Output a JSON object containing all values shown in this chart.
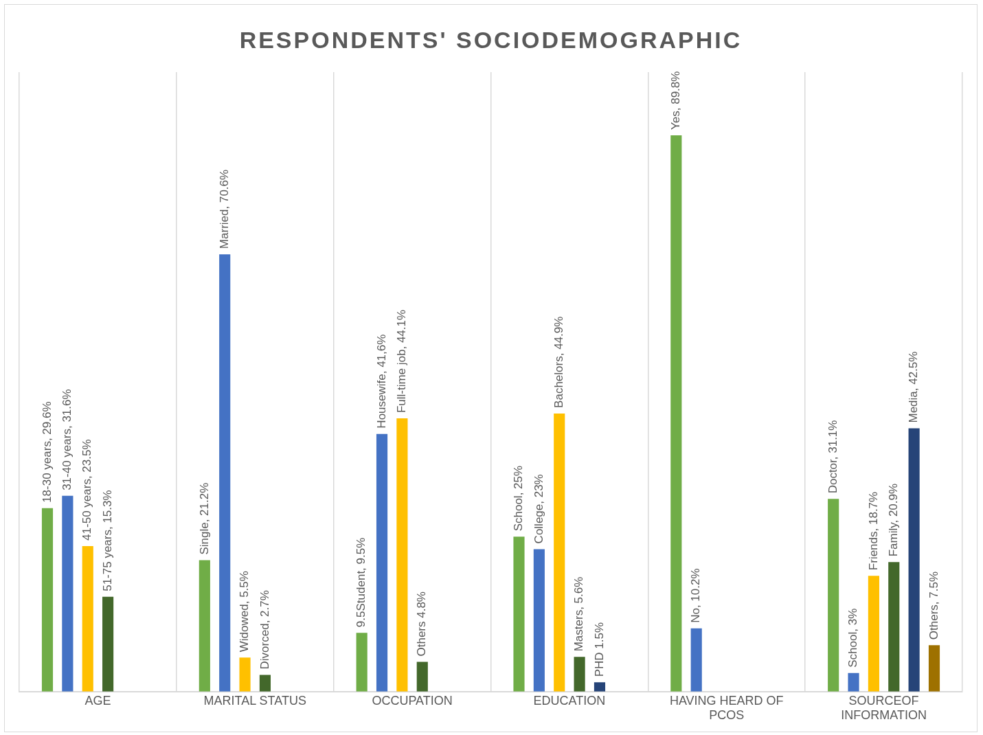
{
  "chart_data": {
    "type": "bar",
    "title": "RESPONDENTS' SOCIODEMOGRAPHIC",
    "categories": [
      "AGE",
      "MARITAL STATUS",
      "OCCUPATION",
      "EDUCATION",
      "HAVING HEARD OF PCOS",
      "SOURCEOF INFORMATION"
    ],
    "series": [
      {
        "color": "#70ad47",
        "values": [
          29.6,
          21.2,
          9.5,
          25,
          89.8,
          31.1
        ],
        "value_labels": [
          "18-30 years, 29.6%",
          "Single, 21.2%",
          "9.5Student, 9.5%",
          "School, 25%",
          "Yes, 89.8%",
          "Doctor, 31.1%"
        ]
      },
      {
        "color": "#4472c4",
        "values": [
          31.6,
          70.6,
          41.6,
          23,
          10.2,
          3
        ],
        "value_labels": [
          "31-40 years, 31.6%",
          "Married, 70.6%",
          "Housewife, 41,6%",
          "College, 23%",
          "No, 10.2%",
          "School, 3%"
        ]
      },
      {
        "color": "#ffc000",
        "values": [
          23.5,
          5.5,
          44.1,
          44.9,
          null,
          18.7
        ],
        "value_labels": [
          "41-50 years, 23.5%",
          "Widowed, 5.5%",
          "Full-time job, 44.1%",
          "Bachelors, 44.9%",
          null,
          "Friends, 18.7%"
        ]
      },
      {
        "color": "#43682b",
        "values": [
          15.3,
          2.7,
          4.8,
          5.6,
          null,
          20.9
        ],
        "value_labels": [
          "51-75 years, 15.3%",
          "Divorced, 2.7%",
          "Others 4.8%",
          "Masters, 5.6%",
          null,
          "Family, 20.9%"
        ]
      },
      {
        "color": "#264478",
        "values": [
          null,
          null,
          null,
          1.5,
          null,
          42.5
        ],
        "value_labels": [
          null,
          null,
          null,
          "PHD 1.5%",
          null,
          "Media, 42.5%"
        ]
      },
      {
        "color": "#9e7100",
        "values": [
          null,
          null,
          null,
          null,
          null,
          7.5
        ],
        "value_labels": [
          null,
          null,
          null,
          null,
          null,
          "Others, 7.5%"
        ]
      }
    ],
    "grid": "x",
    "legend": false,
    "tick_labels": "x"
  }
}
